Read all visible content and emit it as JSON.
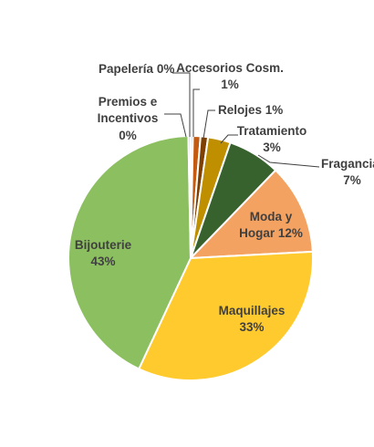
{
  "chart_data": {
    "type": "pie",
    "title": "",
    "slices": [
      {
        "label": "Papelería",
        "value_label": "0%",
        "value": 0.3,
        "color": "#9DC3E6"
      },
      {
        "label": "Accesorios Cosm.",
        "value_label": "1%",
        "value": 1,
        "color": "#C55A11"
      },
      {
        "label": "Relojes",
        "value_label": "1%",
        "value": 1,
        "color": "#7F3F00"
      },
      {
        "label": "Tratamiento",
        "value_label": "3%",
        "value": 3,
        "color": "#BF8F00"
      },
      {
        "label": "Fragancias",
        "value_label": "7%",
        "value": 7,
        "color": "#38622D"
      },
      {
        "label": "Moda y Hogar",
        "value_label": "12%",
        "value": 12,
        "color": "#F4A261"
      },
      {
        "label": "Maquillajes",
        "value_label": "33%",
        "value": 33,
        "color": "#FFCA2D"
      },
      {
        "label": "Bijouterie",
        "value_label": "43%",
        "value": 43,
        "color": "#8CBF60"
      },
      {
        "label": "Premios e Incentivos",
        "value_label": "0%",
        "value": 0.3,
        "color": "#BCCE9B"
      }
    ],
    "legend": "none"
  }
}
